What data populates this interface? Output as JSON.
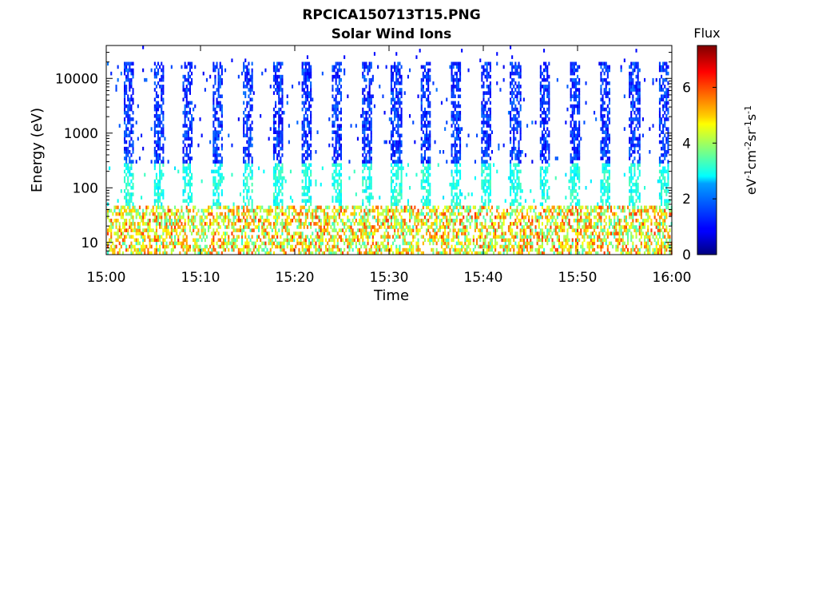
{
  "figure": {
    "title": "RPCICA150713T15.PNG"
  },
  "chart_data": [
    {
      "type": "heatmap",
      "title": "Solar Wind Ions",
      "xlabel": "Time",
      "ylabel": "Energy (eV)",
      "x_tick_labels": [
        "15:00",
        "15:10",
        "15:20",
        "15:30",
        "15:40",
        "15:50",
        "16:00"
      ],
      "xlim": [
        "15:00",
        "16:00"
      ],
      "y_scale": "log",
      "ylim": [
        6,
        40000
      ],
      "y_tick_values": [
        10,
        100,
        1000,
        10000
      ],
      "y_tick_labels": [
        "10",
        "100",
        "1000",
        "10000"
      ],
      "grid": false,
      "colorbar": {
        "title": "Flux",
        "label": "eV⁻¹cm⁻²sr⁻¹s⁻¹",
        "range": [
          0,
          7.5
        ],
        "tick_labels": [
          "0",
          "2",
          "4",
          "6"
        ],
        "tick_values": [
          0,
          2,
          4,
          6
        ],
        "colormap": "jet"
      },
      "sweep_period_minutes": 3.2,
      "sweeps": 19,
      "description_features": {
        "low_energy_band_eV": [
          8,
          40
        ],
        "low_energy_flux": 5.2,
        "high_energy_extent_eV": 20000,
        "high_energy_flux": 1.2
      }
    }
  ]
}
